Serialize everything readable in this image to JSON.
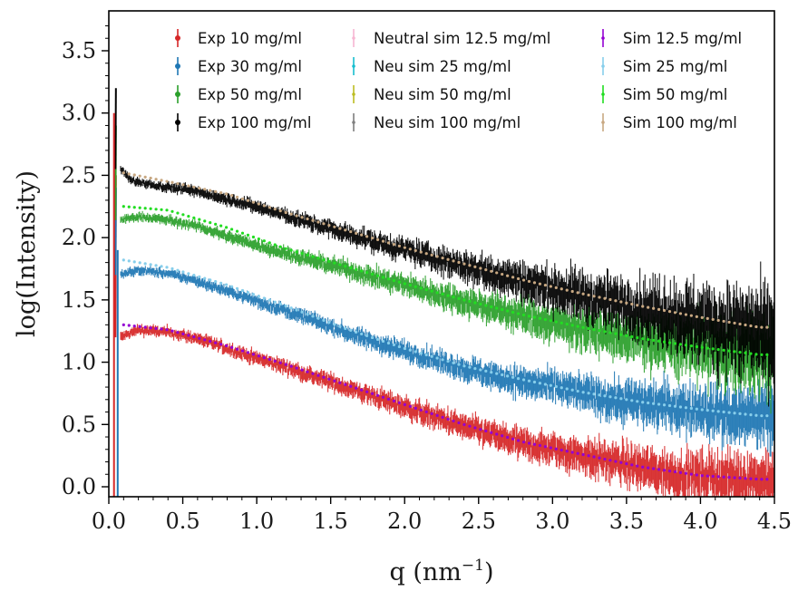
{
  "chart_data": {
    "type": "scatter",
    "title": "",
    "xlabel": "q (nm",
    "xlabel_sup": "−1",
    "xlabel_close": ")",
    "ylabel": "log(Intensity)",
    "xlim": [
      0.0,
      4.5
    ],
    "ylim": [
      -0.08,
      3.82
    ],
    "x_ticks": [
      0.0,
      0.5,
      1.0,
      1.5,
      2.0,
      2.5,
      3.0,
      3.5,
      4.0,
      4.5
    ],
    "x_tick_labels": [
      "0.0",
      "0.5",
      "1.0",
      "1.5",
      "2.0",
      "2.5",
      "3.0",
      "3.5",
      "4.0",
      "4.5"
    ],
    "y_ticks": [
      0.0,
      0.5,
      1.0,
      1.5,
      2.0,
      2.5,
      3.0,
      3.5
    ],
    "y_tick_labels": [
      "0.0",
      "0.5",
      "1.0",
      "1.5",
      "2.0",
      "2.5",
      "3.0",
      "3.5"
    ],
    "grid": false,
    "legend_position": "top-right",
    "series": [
      {
        "name": "Exp 10 mg/ml",
        "color": "#d62728",
        "kind": "experimental",
        "x": [
          0.05,
          0.08,
          0.2,
          0.4,
          0.6,
          0.8,
          1.0,
          1.2,
          1.4,
          1.6,
          1.8,
          2.0,
          2.2,
          2.4,
          2.6,
          2.8,
          3.0,
          3.2,
          3.4,
          3.6,
          3.8,
          4.0,
          4.2,
          4.4
        ],
        "y": [
          2.5,
          1.2,
          1.26,
          1.24,
          1.19,
          1.11,
          1.03,
          0.96,
          0.88,
          0.8,
          0.72,
          0.64,
          0.56,
          0.48,
          0.41,
          0.34,
          0.3,
          0.25,
          0.2,
          0.15,
          0.1,
          0.08,
          0.06,
          0.05
        ],
        "noise_start": 0.35,
        "noise_end": 0.85
      },
      {
        "name": "Exp 30 mg/ml",
        "color": "#1f77b4",
        "kind": "experimental",
        "x": [
          0.05,
          0.08,
          0.2,
          0.4,
          0.6,
          0.8,
          1.0,
          1.2,
          1.4,
          1.6,
          1.8,
          2.0,
          2.2,
          2.4,
          2.6,
          2.8,
          3.0,
          3.2,
          3.4,
          3.6,
          3.8,
          4.0,
          4.2,
          4.4
        ],
        "y": [
          2.4,
          1.7,
          1.74,
          1.71,
          1.65,
          1.57,
          1.49,
          1.41,
          1.33,
          1.24,
          1.16,
          1.09,
          1.02,
          0.95,
          0.89,
          0.84,
          0.8,
          0.75,
          0.7,
          0.67,
          0.64,
          0.61,
          0.58,
          0.56
        ],
        "noise_start": 0.3,
        "noise_end": 0.9
      },
      {
        "name": "Exp 50 mg/ml",
        "color": "#2ca02c",
        "kind": "experimental",
        "x": [
          0.05,
          0.08,
          0.2,
          0.4,
          0.6,
          0.8,
          1.0,
          1.2,
          1.4,
          1.6,
          1.8,
          2.0,
          2.2,
          2.4,
          2.6,
          2.8,
          3.0,
          3.2,
          3.4,
          3.6,
          3.8,
          4.0,
          4.2,
          4.4
        ],
        "y": [
          2.9,
          2.14,
          2.17,
          2.14,
          2.09,
          2.01,
          1.94,
          1.87,
          1.81,
          1.75,
          1.68,
          1.62,
          1.55,
          1.49,
          1.43,
          1.37,
          1.32,
          1.27,
          1.22,
          1.18,
          1.14,
          1.11,
          1.08,
          1.05
        ],
        "noise_start": 0.3,
        "noise_end": 1.1
      },
      {
        "name": "Exp 100 mg/ml",
        "color": "#000000",
        "kind": "experimental",
        "x": [
          0.05,
          0.08,
          0.15,
          0.3,
          0.5,
          0.7,
          0.9,
          1.1,
          1.3,
          1.5,
          1.7,
          1.9,
          2.1,
          2.3,
          2.5,
          2.7,
          2.9,
          3.1,
          3.3,
          3.5,
          3.7,
          3.9,
          4.1,
          4.3,
          4.45
        ],
        "y": [
          3.2,
          2.55,
          2.46,
          2.42,
          2.39,
          2.34,
          2.28,
          2.21,
          2.14,
          2.07,
          2.0,
          1.93,
          1.87,
          1.8,
          1.74,
          1.68,
          1.62,
          1.56,
          1.5,
          1.45,
          1.4,
          1.35,
          1.3,
          1.25,
          1.22
        ],
        "noise_start": 0.3,
        "noise_end": 1.3
      },
      {
        "name": "Neutral sim 12.5 mg/ml",
        "color": "#f7b6d2",
        "kind": "simulation",
        "x": [],
        "y": []
      },
      {
        "name": "Neu sim 25 mg/ml",
        "color": "#17becf",
        "kind": "simulation",
        "x": [],
        "y": []
      },
      {
        "name": "Neu sim 50 mg/ml",
        "color": "#bcbd22",
        "kind": "simulation",
        "x": [],
        "y": []
      },
      {
        "name": "Neu sim 100 mg/ml",
        "color": "#7f7f7f",
        "kind": "simulation",
        "x": [],
        "y": []
      },
      {
        "name": "Sim 12.5 mg/ml",
        "color": "#9400d3",
        "kind": "simulation",
        "x": [
          0.1,
          0.4,
          0.8,
          1.2,
          1.6,
          2.0,
          2.4,
          2.8,
          3.2,
          3.6,
          4.0,
          4.4
        ],
        "y": [
          1.3,
          1.26,
          1.13,
          0.98,
          0.82,
          0.66,
          0.5,
          0.36,
          0.26,
          0.16,
          0.09,
          0.06
        ]
      },
      {
        "name": "Sim 25 mg/ml",
        "color": "#87ceeb",
        "kind": "simulation",
        "x": [
          0.1,
          0.4,
          0.8,
          1.2,
          1.6,
          2.0,
          2.4,
          2.8,
          3.2,
          3.6,
          4.0,
          4.4
        ],
        "y": [
          1.82,
          1.76,
          1.62,
          1.45,
          1.27,
          1.11,
          0.97,
          0.86,
          0.76,
          0.68,
          0.62,
          0.57
        ]
      },
      {
        "name": "Sim 50 mg/ml",
        "color": "#22dd22",
        "kind": "simulation",
        "x": [
          0.1,
          0.4,
          0.8,
          1.2,
          1.6,
          2.0,
          2.4,
          2.8,
          3.2,
          3.6,
          4.0,
          4.4
        ],
        "y": [
          2.25,
          2.22,
          2.08,
          1.91,
          1.77,
          1.63,
          1.5,
          1.38,
          1.28,
          1.19,
          1.12,
          1.06
        ]
      },
      {
        "name": "Sim 100 mg/ml",
        "color": "#c8a882",
        "kind": "simulation",
        "x": [
          0.1,
          0.4,
          0.8,
          1.2,
          1.6,
          2.0,
          2.4,
          2.8,
          3.2,
          3.6,
          4.0,
          4.4
        ],
        "y": [
          2.52,
          2.45,
          2.35,
          2.2,
          2.06,
          1.92,
          1.79,
          1.66,
          1.55,
          1.45,
          1.36,
          1.28
        ]
      }
    ]
  }
}
